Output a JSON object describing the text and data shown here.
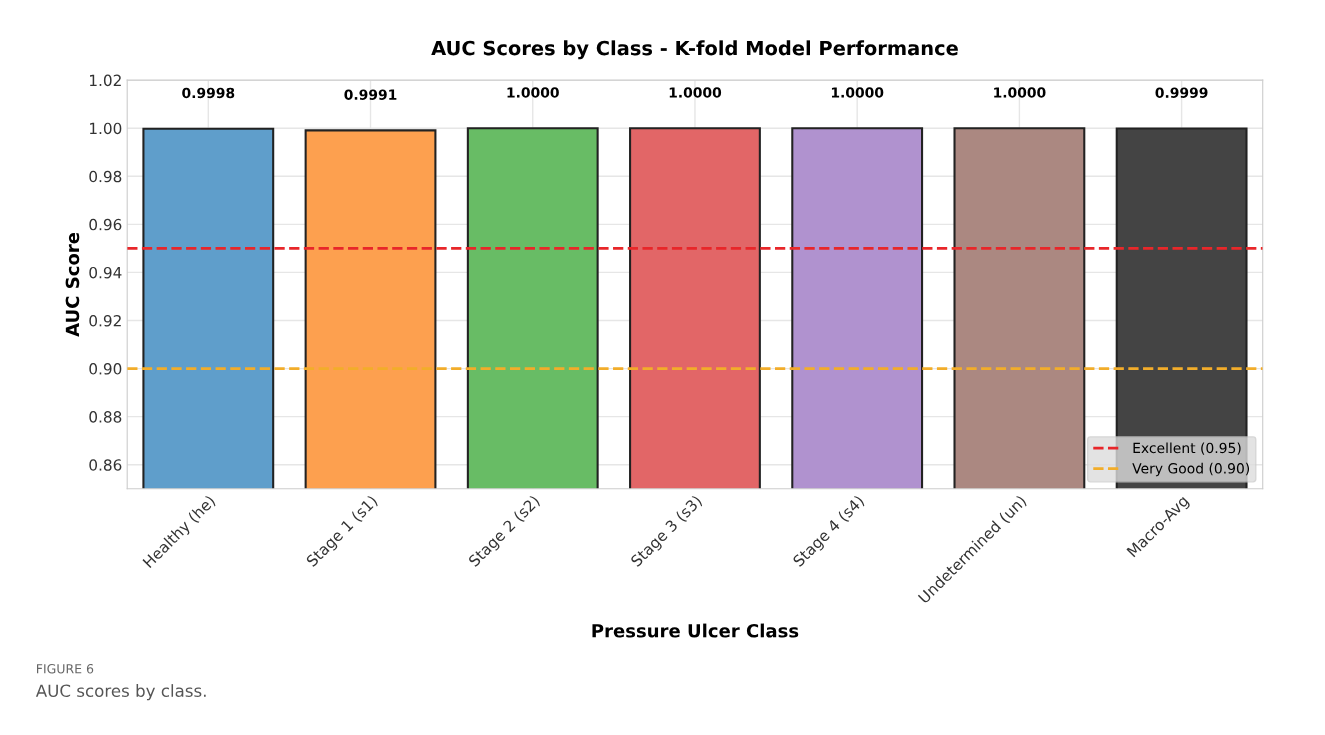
{
  "chart_data": {
    "type": "bar",
    "title": "AUC Scores by Class - K-fold Model Performance",
    "xlabel": "Pressure Ulcer Class",
    "ylabel": "AUC Score",
    "categories": [
      "Healthy (he)",
      "Stage 1 (s1)",
      "Stage 2 (s2)",
      "Stage 3 (s3)",
      "Stage 4 (s4)",
      "Undetermined (un)",
      "Macro-Avg"
    ],
    "values": [
      0.9998,
      0.9991,
      1.0,
      1.0,
      1.0,
      1.0,
      0.9999
    ],
    "value_labels": [
      "0.9998",
      "0.9991",
      "1.0000",
      "1.0000",
      "1.0000",
      "1.0000",
      "0.9999"
    ],
    "colors": [
      "#5f9ecb",
      "#fda04f",
      "#68bc65",
      "#e26667",
      "#b092cf",
      "#ab8881",
      "#444444"
    ],
    "ylim": [
      0.85,
      1.02
    ],
    "yticks": [
      {
        "value": 0.86,
        "label": "0.86"
      },
      {
        "value": 0.88,
        "label": "0.88"
      },
      {
        "value": 0.9,
        "label": "0.90"
      },
      {
        "value": 0.92,
        "label": "0.92"
      },
      {
        "value": 0.94,
        "label": "0.94"
      },
      {
        "value": 0.96,
        "label": "0.96"
      },
      {
        "value": 0.98,
        "label": "0.98"
      },
      {
        "value": 1.0,
        "label": "1.00"
      },
      {
        "value": 1.02,
        "label": "1.02"
      }
    ],
    "ref_lines": [
      {
        "axis": "y",
        "value": 0.95,
        "label": "Excellent (0.95)",
        "color": "#e8262a",
        "line_style": "dashed"
      },
      {
        "axis": "y",
        "value": 0.9,
        "label": "Very Good (0.90)",
        "color": "#f2ad2a",
        "line_style": "dashed"
      }
    ],
    "grid": true,
    "legend": "bottom right",
    "annotations": [
      "FIGURE 6",
      "AUC scores by class."
    ]
  }
}
